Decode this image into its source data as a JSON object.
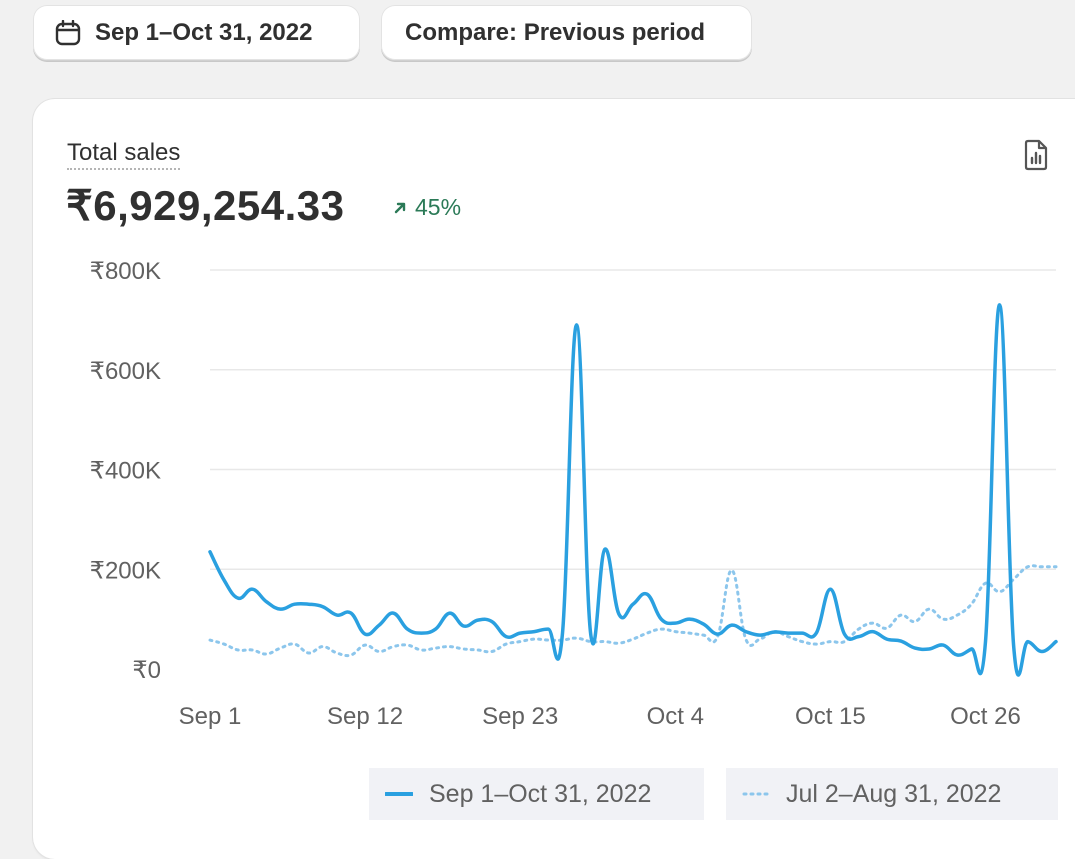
{
  "toolbar": {
    "date_range": "Sep 1–Oct 31, 2022",
    "compare": "Compare: Previous period"
  },
  "card": {
    "metric": "Total sales",
    "total": "₹6,929,254.33",
    "change": "45%"
  },
  "colors": {
    "primary": "#2aa0e0",
    "comparison": "#8cc6ec",
    "positive": "#2b7a57"
  },
  "icons": [
    "calendar-icon",
    "export-report-icon",
    "arrow-up-right-icon"
  ],
  "chart_data": {
    "type": "line",
    "ylim": [
      0,
      800000
    ],
    "y_ticks": [
      "₹0",
      "₹200K",
      "₹400K",
      "₹600K",
      "₹800K"
    ],
    "x_ticks": [
      "Sep 1",
      "Sep 12",
      "Sep 23",
      "Oct 4",
      "Oct 15",
      "Oct 26"
    ],
    "grid": true,
    "legend_position": "bottom",
    "series": [
      {
        "name": "Sep 1–Oct 31, 2022",
        "style": "solid",
        "values": [
          235000,
          178000,
          142000,
          160000,
          135000,
          120000,
          130000,
          130000,
          125000,
          108000,
          112000,
          70000,
          88000,
          112000,
          80000,
          72000,
          80000,
          112000,
          86000,
          98000,
          95000,
          65000,
          72000,
          75000,
          80000,
          72000,
          690000,
          70000,
          240000,
          110000,
          130000,
          150000,
          100000,
          92000,
          100000,
          90000,
          70000,
          88000,
          75000,
          68000,
          74000,
          72000,
          72000,
          72000,
          160000,
          70000,
          65000,
          75000,
          60000,
          56000,
          42000,
          40000,
          48000,
          28000,
          40000,
          55000,
          730000,
          45000,
          55000,
          35000,
          55000
        ]
      },
      {
        "name": "Jul 2–Aug 31, 2022",
        "style": "dotted",
        "values": [
          58000,
          50000,
          38000,
          38000,
          30000,
          42000,
          50000,
          32000,
          45000,
          32000,
          28000,
          48000,
          35000,
          45000,
          48000,
          38000,
          42000,
          45000,
          40000,
          38000,
          35000,
          50000,
          55000,
          60000,
          58000,
          58000,
          62000,
          55000,
          55000,
          52000,
          60000,
          72000,
          80000,
          75000,
          72000,
          68000,
          65000,
          198000,
          60000,
          60000,
          75000,
          65000,
          55000,
          50000,
          55000,
          55000,
          80000,
          92000,
          82000,
          108000,
          95000,
          120000,
          100000,
          108000,
          130000,
          172000,
          155000,
          180000,
          205000,
          205000,
          205000
        ]
      }
    ]
  }
}
